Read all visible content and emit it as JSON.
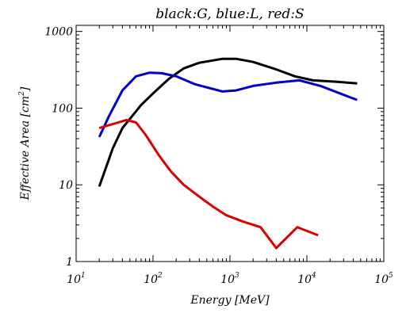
{
  "chart_data": {
    "type": "line",
    "title": "black:G,  blue:L,  red:S",
    "xlabel_main": "Energy",
    "xlabel_unit": "[MeV]",
    "ylabel_main": "Effective Area",
    "ylabel_unit": "[cm",
    "ylabel_unit_exp": "2",
    "ylabel_unit_close": "]",
    "xscale": "log",
    "yscale": "log",
    "xlim": [
      10,
      100000
    ],
    "ylim": [
      1,
      1200
    ],
    "grid": false,
    "legend": "none",
    "x_ticks": [
      {
        "value": 10,
        "base": "10",
        "exp": "1"
      },
      {
        "value": 100,
        "base": "10",
        "exp": "2"
      },
      {
        "value": 1000,
        "base": "10",
        "exp": "3"
      },
      {
        "value": 10000,
        "base": "10",
        "exp": "4"
      },
      {
        "value": 100000,
        "base": "10",
        "exp": "5"
      }
    ],
    "y_ticks": [
      {
        "value": 1,
        "label": "1"
      },
      {
        "value": 10,
        "label": "10"
      },
      {
        "value": 100,
        "label": "100"
      },
      {
        "value": 1000,
        "label": "1000"
      }
    ],
    "series": [
      {
        "color": "#000000",
        "x": [
          20,
          30,
          40,
          70,
          110,
          160,
          250,
          400,
          800,
          1200,
          2000,
          4000,
          7000,
          12000,
          25000,
          45000
        ],
        "y": [
          9.5,
          30,
          55,
          110,
          170,
          240,
          330,
          390,
          440,
          440,
          400,
          320,
          260,
          230,
          220,
          210
        ]
      },
      {
        "color": "#0000cc",
        "x": [
          20,
          27,
          40,
          60,
          90,
          130,
          200,
          350,
          800,
          1200,
          2000,
          4000,
          8000,
          15000,
          25000,
          45000
        ],
        "y": [
          42,
          80,
          170,
          260,
          290,
          285,
          260,
          205,
          165,
          170,
          195,
          215,
          230,
          195,
          160,
          128
        ]
      },
      {
        "color": "#dd0000",
        "x": [
          20,
          30,
          45,
          60,
          80,
          120,
          170,
          250,
          400,
          600,
          900,
          1500,
          2500,
          4000,
          7500,
          14000
        ],
        "y": [
          55,
          62,
          70,
          65,
          45,
          24,
          15,
          10,
          7,
          5.2,
          4.0,
          3.3,
          2.8,
          1.5,
          2.8,
          2.2
        ]
      }
    ]
  }
}
